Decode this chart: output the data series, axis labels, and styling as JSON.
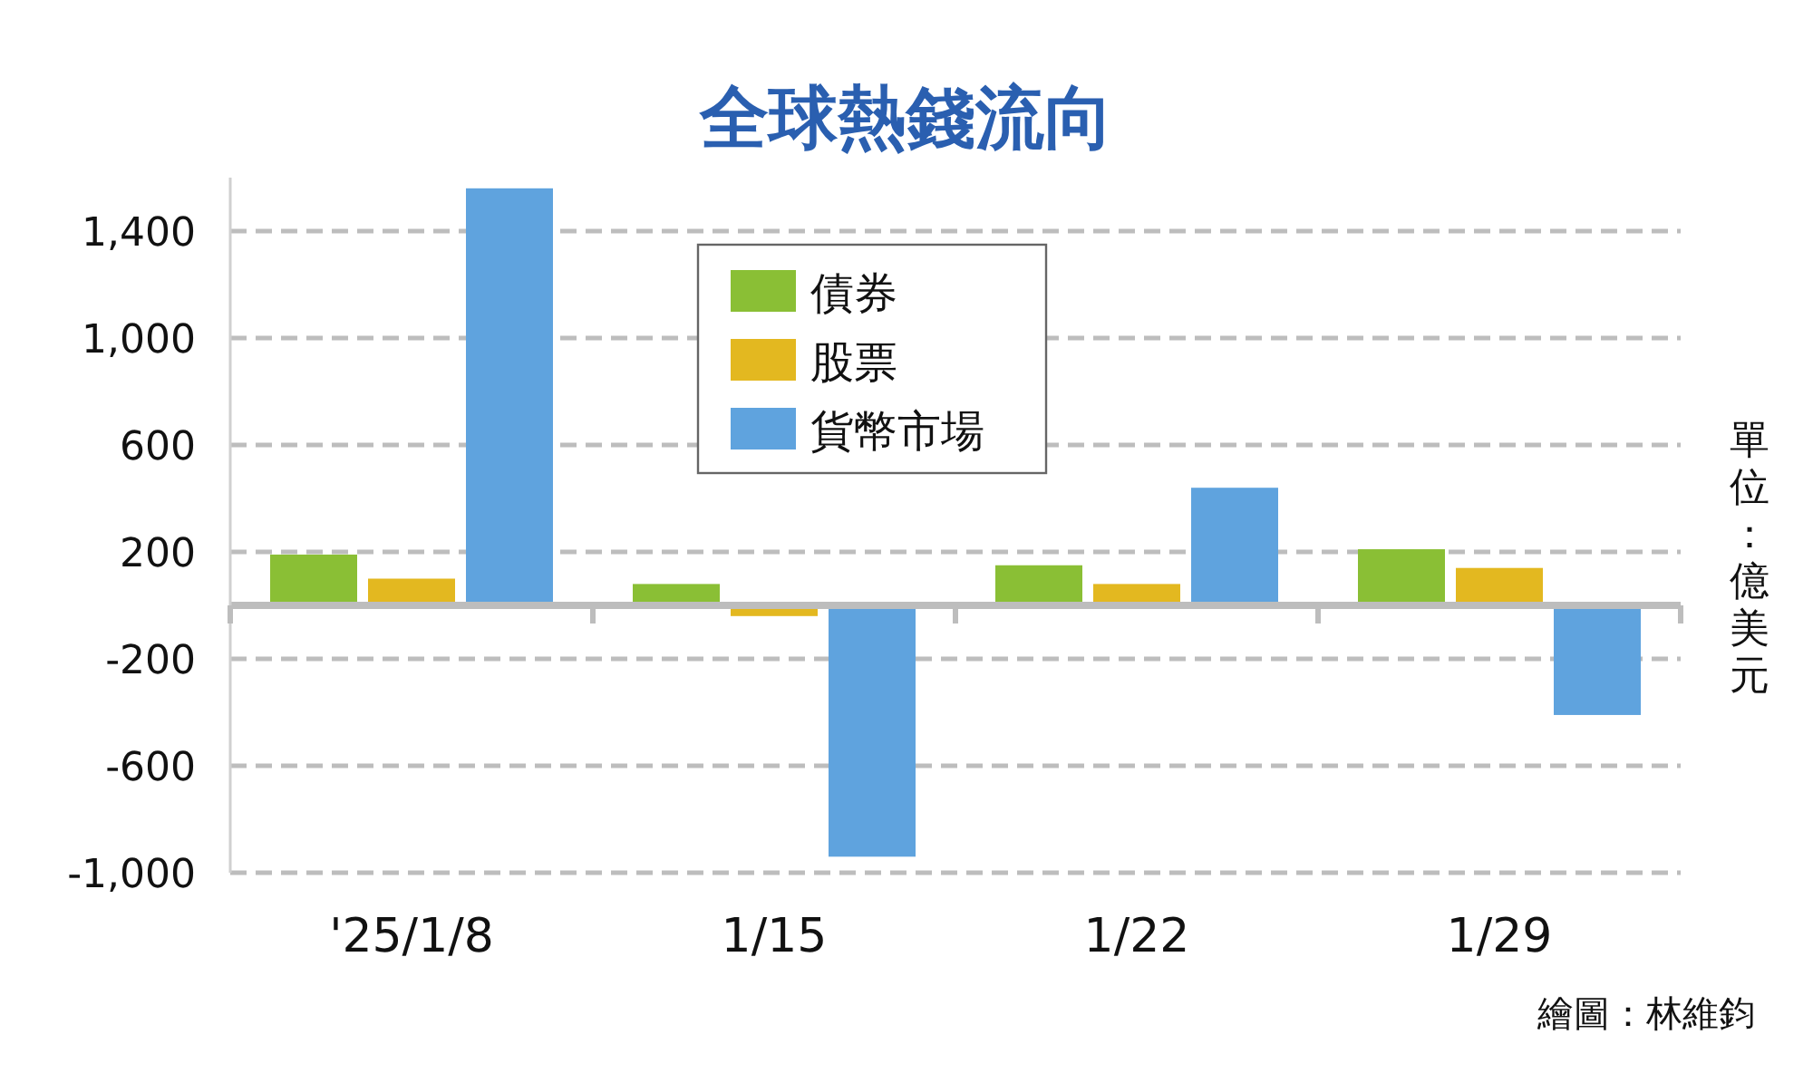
{
  "chart_data": {
    "type": "bar",
    "title": "全球熱錢流向",
    "ylabel": "單位：億美元",
    "categories": [
      "'25/1/8",
      "1/15",
      "1/22",
      "1/29"
    ],
    "series": [
      {
        "name": "債券",
        "color": "#8abf35",
        "values": [
          190,
          80,
          150,
          210
        ]
      },
      {
        "name": "股票",
        "color": "#e3b820",
        "values": [
          100,
          -40,
          80,
          140
        ]
      },
      {
        "name": "貨幣市場",
        "color": "#5fa3de",
        "values": [
          1560,
          -940,
          440,
          -410
        ]
      }
    ],
    "ylim": [
      -1000,
      1600
    ],
    "yticks": [
      {
        "value": 1400,
        "label": "1,400"
      },
      {
        "value": 1000,
        "label": "1,000"
      },
      600,
      200,
      -200,
      -600,
      {
        "value": -1000,
        "label": "-1,000"
      }
    ],
    "grid": "y",
    "legend": "top",
    "annotations": [
      "繪圖：林維鈞"
    ]
  }
}
